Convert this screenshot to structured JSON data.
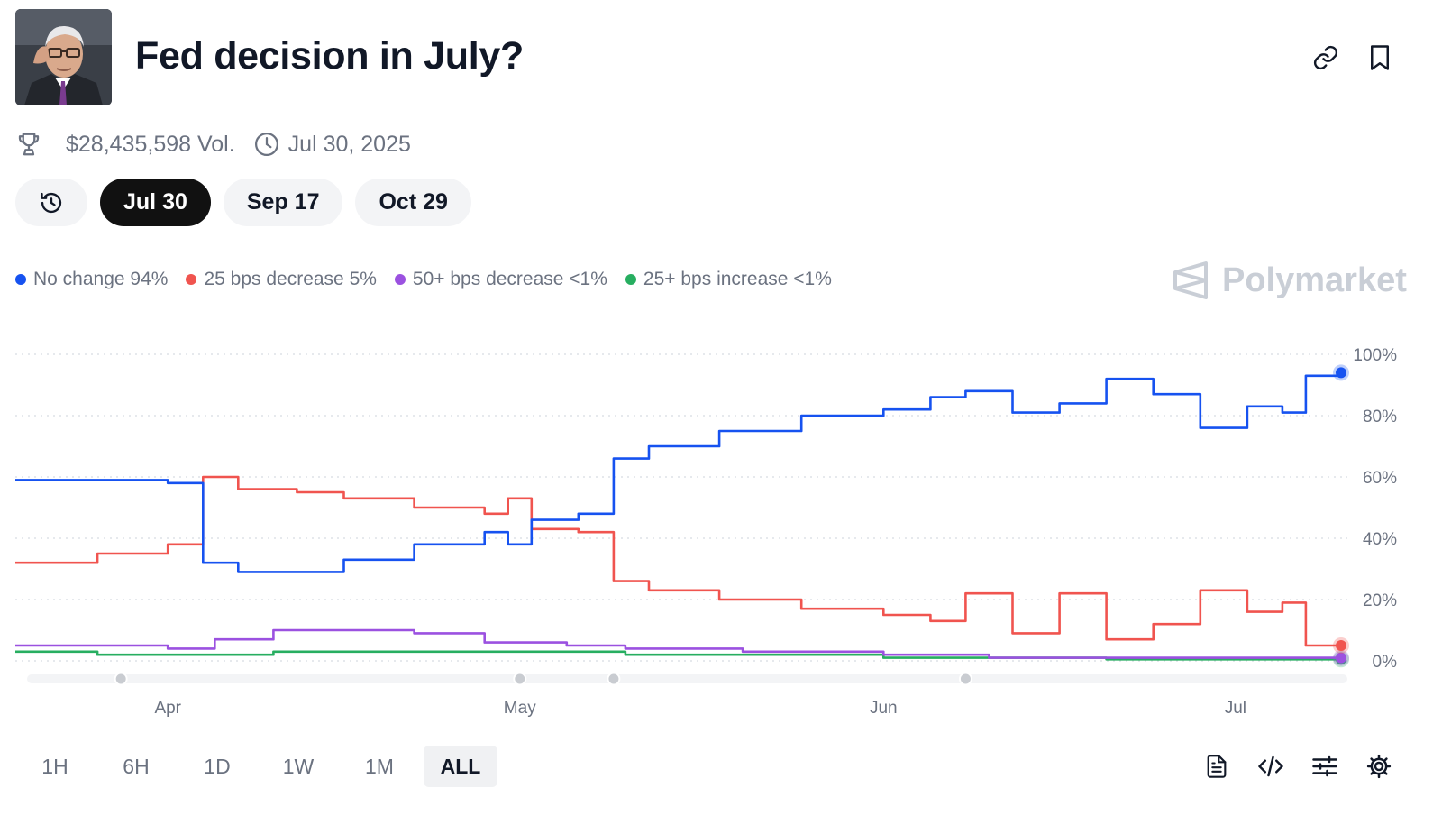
{
  "header": {
    "title": "Fed decision in July?",
    "volume": "$28,435,598 Vol.",
    "date": "Jul 30, 2025",
    "icons": [
      "link-icon",
      "bookmark-icon",
      "trophy-icon",
      "clock-icon"
    ]
  },
  "date_tabs": [
    {
      "label": "",
      "icon": "history-icon",
      "active": false
    },
    {
      "label": "Jul 30",
      "active": true
    },
    {
      "label": "Sep 17",
      "active": false
    },
    {
      "label": "Oct 29",
      "active": false
    }
  ],
  "legend": [
    {
      "label": "No change 94%",
      "color": "#1652f0"
    },
    {
      "label": "25 bps decrease 5%",
      "color": "#f0544f"
    },
    {
      "label": "50+ bps decrease <1%",
      "color": "#9b51e0"
    },
    {
      "label": "25+ bps increase <1%",
      "color": "#27ae60"
    }
  ],
  "brand": "Polymarket",
  "time_ranges": [
    {
      "label": "1H",
      "active": false
    },
    {
      "label": "6H",
      "active": false
    },
    {
      "label": "1D",
      "active": false
    },
    {
      "label": "1W",
      "active": false
    },
    {
      "label": "1M",
      "active": false
    },
    {
      "label": "ALL",
      "active": true
    }
  ],
  "tools": [
    "document-icon",
    "code-icon",
    "sliders-icon",
    "gear-icon"
  ],
  "chart_data": {
    "type": "line",
    "y_unit": "%",
    "ylim": [
      0,
      100
    ],
    "y_ticks": [
      "100%",
      "80%",
      "60%",
      "40%",
      "20%",
      "0%"
    ],
    "x_ticks": [
      "Apr",
      "May",
      "Jun",
      "Jul"
    ],
    "grid": true,
    "series": [
      {
        "name": "No change",
        "color": "#1652f0",
        "x": [
          "Mar 19",
          "Mar 26",
          "Apr 1",
          "Apr 4",
          "Apr 7",
          "Apr 12",
          "Apr 16",
          "Apr 22",
          "Apr 28",
          "Apr 30",
          "May 2",
          "May 6",
          "May 9",
          "May 12",
          "May 18",
          "May 25",
          "Jun 1",
          "Jun 5",
          "Jun 8",
          "Jun 12",
          "Jun 16",
          "Jun 20",
          "Jun 24",
          "Jun 28",
          "Jul 2",
          "Jul 5",
          "Jul 7",
          "Jul 10"
        ],
        "values": [
          59,
          59,
          58,
          32,
          29,
          29,
          33,
          38,
          42,
          38,
          46,
          48,
          66,
          70,
          75,
          80,
          82,
          86,
          88,
          81,
          84,
          92,
          87,
          76,
          83,
          81,
          93,
          94
        ]
      },
      {
        "name": "25 bps decrease",
        "color": "#f0544f",
        "x": [
          "Mar 19",
          "Mar 26",
          "Apr 1",
          "Apr 4",
          "Apr 7",
          "Apr 12",
          "Apr 16",
          "Apr 22",
          "Apr 28",
          "Apr 30",
          "May 2",
          "May 6",
          "May 9",
          "May 12",
          "May 18",
          "May 25",
          "Jun 1",
          "Jun 5",
          "Jun 8",
          "Jun 12",
          "Jun 16",
          "Jun 20",
          "Jun 24",
          "Jun 28",
          "Jul 2",
          "Jul 5",
          "Jul 7",
          "Jul 10"
        ],
        "values": [
          32,
          35,
          38,
          60,
          56,
          55,
          53,
          50,
          48,
          53,
          43,
          42,
          26,
          23,
          20,
          17,
          15,
          13,
          22,
          9,
          22,
          7,
          12,
          23,
          16,
          19,
          5,
          5
        ]
      },
      {
        "name": "50+ bps decrease",
        "color": "#9b51e0",
        "x": [
          "Mar 19",
          "Mar 26",
          "Apr 1",
          "Apr 5",
          "Apr 10",
          "Apr 15",
          "Apr 22",
          "Apr 28",
          "May 5",
          "May 10",
          "May 20",
          "Jun 1",
          "Jun 10",
          "Jun 20",
          "Jul 1",
          "Jul 10"
        ],
        "values": [
          5,
          5,
          4,
          7,
          10,
          10,
          9,
          6,
          5,
          4,
          3,
          2,
          1,
          1,
          1,
          1
        ]
      },
      {
        "name": "25+ bps increase",
        "color": "#27ae60",
        "x": [
          "Mar 19",
          "Mar 26",
          "Apr 1",
          "Apr 5",
          "Apr 10",
          "Apr 20",
          "May 1",
          "May 10",
          "May 20",
          "Jun 1",
          "Jun 10",
          "Jun 20",
          "Jul 1",
          "Jul 10"
        ],
        "values": [
          3,
          2,
          2,
          2,
          3,
          3,
          3,
          2,
          2,
          1,
          1,
          0.5,
          0.5,
          0.5
        ]
      }
    ]
  }
}
